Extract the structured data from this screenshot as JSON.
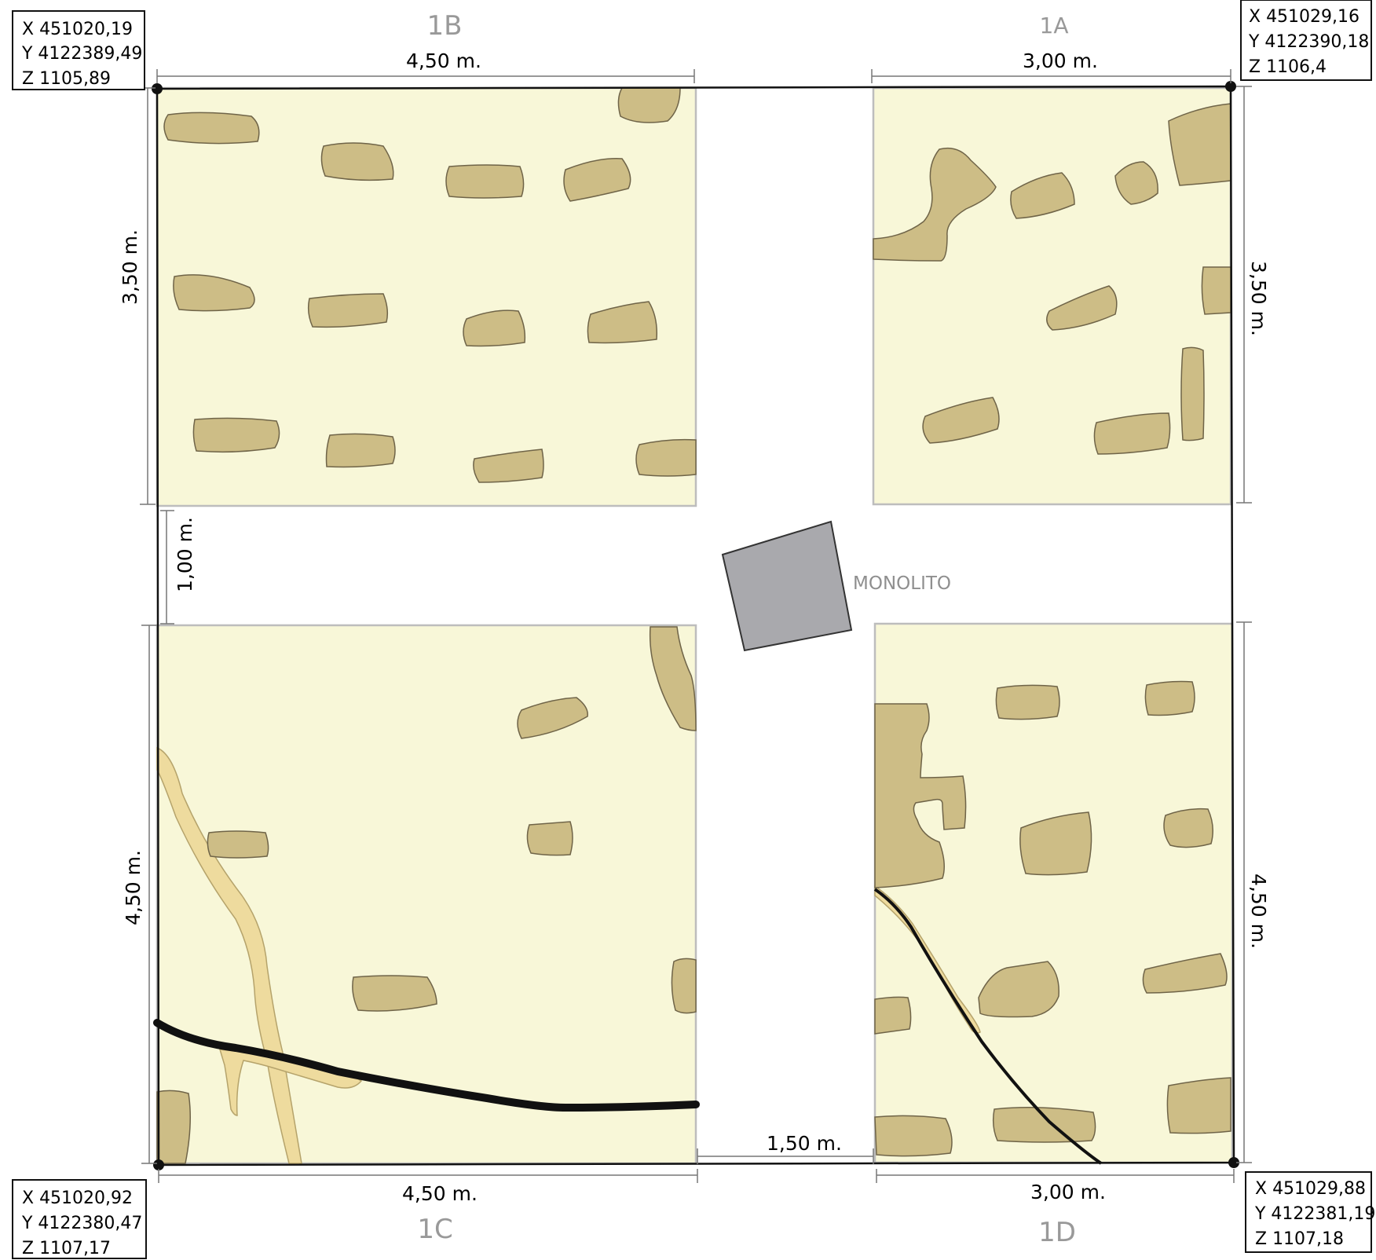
{
  "sectors": {
    "a": "1A",
    "b": "1B",
    "c": "1C",
    "d": "1D"
  },
  "coordinates": {
    "nw": {
      "x": "X 451020,19",
      "y": "Y 4122389,49",
      "z": "Z 1105,89"
    },
    "ne": {
      "x": "X 451029,16",
      "y": "Y 4122390,18",
      "z": "Z 1106,4"
    },
    "sw": {
      "x": "X 451020,92",
      "y": "Y 4122380,47",
      "z": "Z 1107,17"
    },
    "se": {
      "x": "X 451029,88",
      "y": "Y 4122381,19",
      "z": "Z 1107,18"
    }
  },
  "dimensions": {
    "top_left": "4,50 m.",
    "top_right": "3,00 m.",
    "left_upper": "3,50 m.",
    "left_gap": "1,00 m.",
    "left_lower": "4,50 m.",
    "right_upper": "3,50 m.",
    "right_lower": "4,50 m.",
    "bottom_gap": "1,50 m.",
    "bottom_left": "4,50 m.",
    "bottom_right": "3,00 m."
  },
  "feature": {
    "label": "MONOLITO"
  },
  "colors": {
    "sector_fill": "#f8f7d8",
    "stone_fill": "#cdbd86",
    "root_fill": "#eedb9e",
    "monolith_fill": "#a9a9ad",
    "crack": "#111111"
  }
}
